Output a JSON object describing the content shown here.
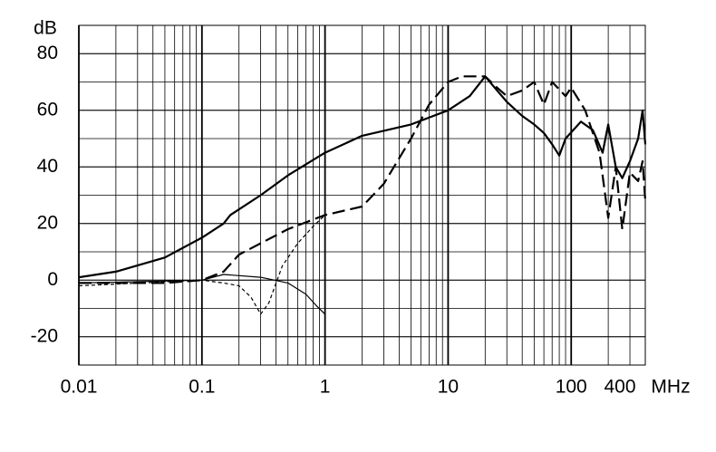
{
  "chart_data": {
    "type": "line",
    "y_label": "dB",
    "x_unit": "MHz",
    "xlog": true,
    "grid": true,
    "xlim": [
      0.01,
      400
    ],
    "ylim": [
      -30,
      90
    ],
    "xticks": [
      0.01,
      0.1,
      1,
      10,
      100,
      400
    ],
    "yticks": [
      -20,
      0,
      20,
      40,
      60,
      80
    ],
    "series": [
      {
        "color": "#000000",
        "width": 2.2,
        "dash": "none",
        "x": [
          0.01,
          0.02,
          0.05,
          0.1,
          0.15,
          0.17,
          0.3,
          0.5,
          1,
          2,
          5,
          10,
          15,
          20,
          25,
          30,
          40,
          50,
          60,
          70,
          80,
          90,
          120,
          150,
          180,
          200,
          230,
          260,
          300,
          350,
          380,
          400
        ],
        "values": [
          1,
          3,
          8,
          15,
          20,
          23,
          30,
          37,
          45,
          51,
          55,
          60,
          65,
          72,
          67,
          63,
          58,
          55,
          52,
          48,
          44,
          50,
          56,
          53,
          45,
          55,
          40,
          36,
          42,
          50,
          60,
          48
        ]
      },
      {
        "color": "#000000",
        "width": 2.2,
        "dash": "14 6",
        "x": [
          0.01,
          0.05,
          0.1,
          0.15,
          0.2,
          0.3,
          0.5,
          1,
          2,
          3,
          5,
          7,
          10,
          13,
          20,
          25,
          30,
          40,
          50,
          60,
          70,
          90,
          100,
          130,
          170,
          200,
          230,
          260,
          300,
          350,
          380,
          400
        ],
        "values": [
          -1,
          -1,
          0,
          3,
          9,
          13,
          18,
          23,
          26,
          34,
          50,
          62,
          70,
          72,
          72,
          68,
          65,
          67,
          70,
          62,
          70,
          65,
          68,
          60,
          45,
          22,
          40,
          18,
          38,
          35,
          42,
          28
        ]
      },
      {
        "color": "#000000",
        "width": 1.2,
        "dash": "4 3",
        "x": [
          0.01,
          0.1,
          0.15,
          0.2,
          0.25,
          0.3,
          0.35,
          0.45,
          0.6,
          0.8,
          1
        ],
        "values": [
          -2,
          0,
          -1,
          -2,
          -6,
          -12,
          -8,
          5,
          13,
          19,
          23
        ]
      },
      {
        "color": "#000000",
        "width": 1.2,
        "dash": "none",
        "x": [
          0.01,
          0.1,
          0.15,
          0.3,
          0.5,
          0.7,
          0.85,
          1
        ],
        "values": [
          -1,
          0,
          2,
          1,
          -1,
          -5,
          -9,
          -12
        ]
      }
    ]
  }
}
